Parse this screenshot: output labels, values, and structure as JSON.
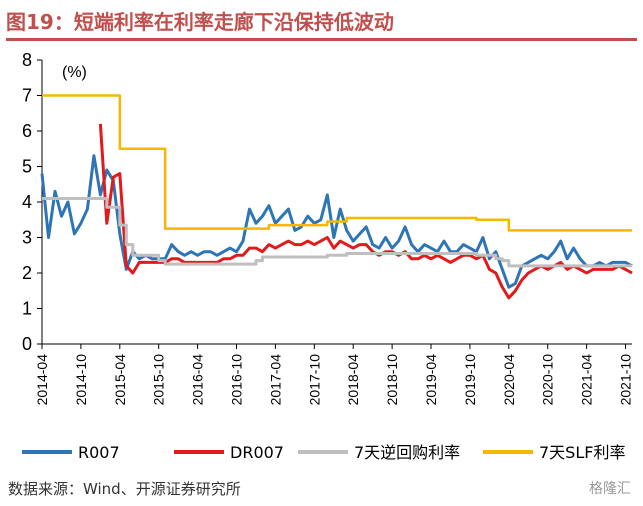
{
  "figure": {
    "title": "图19：短端利率在利率走廊下沿保持低波动",
    "source": "数据来源：Wind、开源证券研究所",
    "watermark": "格隆汇"
  },
  "chart_data": {
    "type": "line",
    "unit_label": "(%)",
    "ylim": [
      0,
      8
    ],
    "y_ticks": [
      "0",
      "1",
      "2",
      "3",
      "4",
      "5",
      "6",
      "7",
      "8"
    ],
    "x_range": [
      "2014-04",
      "2021-11"
    ],
    "x_tick_labels": [
      "2014-04",
      "2014-10",
      "2015-04",
      "2015-10",
      "2016-04",
      "2016-10",
      "2017-04",
      "2017-10",
      "2018-04",
      "2018-10",
      "2019-04",
      "2019-10",
      "2020-04",
      "2020-10",
      "2021-04",
      "2021-10"
    ],
    "grid": false,
    "legend_position": "bottom",
    "series": [
      {
        "name": "R007",
        "color": "#2e75b6",
        "x": [
          "2014-04",
          "2014-05",
          "2014-06",
          "2014-07",
          "2014-08",
          "2014-09",
          "2014-10",
          "2014-11",
          "2014-12",
          "2015-01",
          "2015-02",
          "2015-03",
          "2015-04",
          "2015-05",
          "2015-06",
          "2015-07",
          "2015-08",
          "2015-09",
          "2015-10",
          "2015-11",
          "2015-12",
          "2016-01",
          "2016-02",
          "2016-03",
          "2016-04",
          "2016-05",
          "2016-06",
          "2016-07",
          "2016-08",
          "2016-09",
          "2016-10",
          "2016-11",
          "2016-12",
          "2017-01",
          "2017-02",
          "2017-03",
          "2017-04",
          "2017-05",
          "2017-06",
          "2017-07",
          "2017-08",
          "2017-09",
          "2017-10",
          "2017-11",
          "2017-12",
          "2018-01",
          "2018-02",
          "2018-03",
          "2018-04",
          "2018-05",
          "2018-06",
          "2018-07",
          "2018-08",
          "2018-09",
          "2018-10",
          "2018-11",
          "2018-12",
          "2019-01",
          "2019-02",
          "2019-03",
          "2019-04",
          "2019-05",
          "2019-06",
          "2019-07",
          "2019-08",
          "2019-09",
          "2019-10",
          "2019-11",
          "2019-12",
          "2020-01",
          "2020-02",
          "2020-03",
          "2020-04",
          "2020-05",
          "2020-06",
          "2020-07",
          "2020-08",
          "2020-09",
          "2020-10",
          "2020-11",
          "2020-12",
          "2021-01",
          "2021-02",
          "2021-03",
          "2021-04",
          "2021-05",
          "2021-06",
          "2021-07",
          "2021-08",
          "2021-09",
          "2021-10",
          "2021-11"
        ],
        "values": [
          4.8,
          3.0,
          4.3,
          3.6,
          4.0,
          3.1,
          3.4,
          3.8,
          5.3,
          4.2,
          4.9,
          4.6,
          3.1,
          2.1,
          2.6,
          2.4,
          2.5,
          2.4,
          2.4,
          2.4,
          2.8,
          2.6,
          2.5,
          2.6,
          2.5,
          2.6,
          2.6,
          2.5,
          2.6,
          2.7,
          2.6,
          2.9,
          3.8,
          3.4,
          3.6,
          3.9,
          3.4,
          3.6,
          3.8,
          3.2,
          3.3,
          3.6,
          3.4,
          3.5,
          4.2,
          3.0,
          3.8,
          3.2,
          2.9,
          3.1,
          3.3,
          2.8,
          2.7,
          3.0,
          2.7,
          2.9,
          3.3,
          2.8,
          2.6,
          2.8,
          2.7,
          2.6,
          2.9,
          2.6,
          2.6,
          2.8,
          2.7,
          2.6,
          3.0,
          2.4,
          2.6,
          2.1,
          1.6,
          1.7,
          2.2,
          2.3,
          2.4,
          2.5,
          2.4,
          2.6,
          2.9,
          2.4,
          2.7,
          2.4,
          2.2,
          2.2,
          2.3,
          2.2,
          2.3,
          2.3,
          2.3,
          2.2
        ]
      },
      {
        "name": "DR007",
        "color": "#e31a1c",
        "x": [
          "2015-01",
          "2015-02",
          "2015-03",
          "2015-04",
          "2015-05",
          "2015-06",
          "2015-07",
          "2015-08",
          "2015-09",
          "2015-10",
          "2015-11",
          "2015-12",
          "2016-01",
          "2016-02",
          "2016-03",
          "2016-04",
          "2016-05",
          "2016-06",
          "2016-07",
          "2016-08",
          "2016-09",
          "2016-10",
          "2016-11",
          "2016-12",
          "2017-01",
          "2017-02",
          "2017-03",
          "2017-04",
          "2017-05",
          "2017-06",
          "2017-07",
          "2017-08",
          "2017-09",
          "2017-10",
          "2017-11",
          "2017-12",
          "2018-01",
          "2018-02",
          "2018-03",
          "2018-04",
          "2018-05",
          "2018-06",
          "2018-07",
          "2018-08",
          "2018-09",
          "2018-10",
          "2018-11",
          "2018-12",
          "2019-01",
          "2019-02",
          "2019-03",
          "2019-04",
          "2019-05",
          "2019-06",
          "2019-07",
          "2019-08",
          "2019-09",
          "2019-10",
          "2019-11",
          "2019-12",
          "2020-01",
          "2020-02",
          "2020-03",
          "2020-04",
          "2020-05",
          "2020-06",
          "2020-07",
          "2020-08",
          "2020-09",
          "2020-10",
          "2020-11",
          "2020-12",
          "2021-01",
          "2021-02",
          "2021-03",
          "2021-04",
          "2021-05",
          "2021-06",
          "2021-07",
          "2021-08",
          "2021-09",
          "2021-10",
          "2021-11"
        ],
        "values": [
          6.2,
          3.4,
          4.7,
          4.8,
          2.2,
          2.0,
          2.3,
          2.3,
          2.3,
          2.3,
          2.3,
          2.4,
          2.4,
          2.3,
          2.3,
          2.3,
          2.3,
          2.3,
          2.3,
          2.4,
          2.4,
          2.5,
          2.5,
          2.7,
          2.7,
          2.6,
          2.8,
          2.7,
          2.8,
          2.9,
          2.8,
          2.8,
          2.9,
          2.8,
          2.9,
          3.0,
          2.7,
          2.9,
          2.8,
          2.7,
          2.8,
          2.8,
          2.6,
          2.5,
          2.6,
          2.6,
          2.5,
          2.6,
          2.4,
          2.4,
          2.5,
          2.4,
          2.5,
          2.4,
          2.3,
          2.4,
          2.5,
          2.5,
          2.4,
          2.5,
          2.1,
          2.0,
          1.6,
          1.3,
          1.5,
          1.8,
          2.0,
          2.1,
          2.2,
          2.1,
          2.2,
          2.3,
          2.1,
          2.2,
          2.1,
          2.0,
          2.1,
          2.1,
          2.1,
          2.1,
          2.2,
          2.1,
          2.0
        ]
      },
      {
        "name": "7天逆回购利率",
        "color": "#bfbfbf",
        "x": [
          "2014-04",
          "2014-10",
          "2015-02",
          "2015-04",
          "2015-05",
          "2015-06",
          "2015-08",
          "2015-10",
          "2015-11",
          "2016-12",
          "2017-01",
          "2017-02",
          "2017-03",
          "2017-12",
          "2018-03",
          "2019-10",
          "2019-11",
          "2020-02",
          "2020-03",
          "2020-04",
          "2021-11"
        ],
        "values": [
          4.1,
          4.1,
          3.85,
          3.35,
          2.8,
          2.5,
          2.5,
          2.35,
          2.25,
          2.25,
          2.35,
          2.45,
          2.45,
          2.5,
          2.55,
          2.55,
          2.5,
          2.4,
          2.35,
          2.2,
          2.2
        ]
      },
      {
        "name": "7天SLF利率",
        "color": "#f5b800",
        "x": [
          "2014-04",
          "2015-04",
          "2015-11",
          "2017-02",
          "2017-03",
          "2017-12",
          "2018-03",
          "2019-11",
          "2020-04",
          "2021-11"
        ],
        "values": [
          7.0,
          5.5,
          3.25,
          3.25,
          3.35,
          3.45,
          3.55,
          3.5,
          3.2,
          3.2
        ]
      }
    ]
  }
}
